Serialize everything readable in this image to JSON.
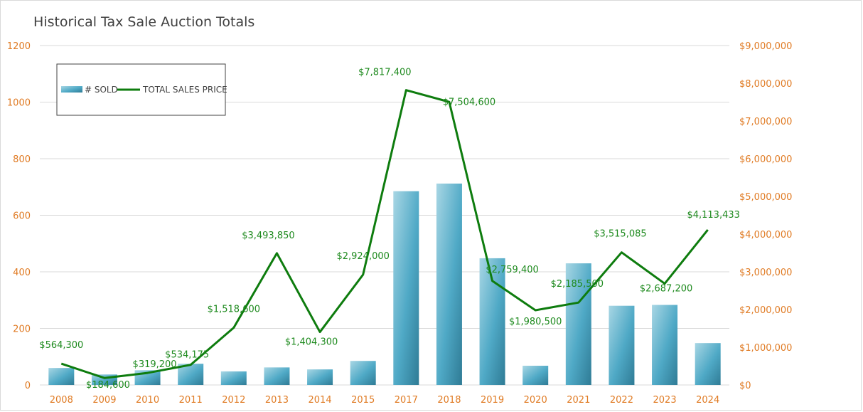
{
  "chart_data": {
    "type": "bar",
    "title": "Historical Tax Sale Auction Totals",
    "categories": [
      "2008",
      "2009",
      "2010",
      "2011",
      "2012",
      "2013",
      "2014",
      "2015",
      "2017",
      "2018",
      "2019",
      "2020",
      "2021",
      "2022",
      "2023",
      "2024"
    ],
    "series": [
      {
        "name": "# SOLD",
        "type": "bar",
        "axis": "left",
        "color": "#4aa6c4",
        "values": [
          60,
          37,
          52,
          75,
          48,
          62,
          55,
          85,
          685,
          712,
          448,
          68,
          430,
          280,
          283,
          148
        ]
      },
      {
        "name": "TOTAL SALES PRICE",
        "type": "line",
        "axis": "right",
        "color": "#0e7c0e",
        "values": [
          564300,
          184600,
          319200,
          534175,
          1518600,
          3493850,
          1404300,
          2924000,
          7817400,
          7504600,
          2759400,
          1980500,
          2185500,
          3515085,
          2687200,
          4113433
        ],
        "labels": [
          "$564,300",
          "$184,600",
          "$319,200",
          "$534,175",
          "$1,518,600",
          "$3,493,850",
          "$1,404,300",
          "$2,924,000",
          "$7,817,400",
          "$7,504,600",
          "$2,759,400",
          "$1,980,500",
          "$2,185,500",
          "$3,515,085",
          "$2,687,200",
          "$4,113,433"
        ]
      }
    ],
    "y_left": {
      "min": 0,
      "max": 1200,
      "ticks": [
        "0",
        "200",
        "400",
        "600",
        "800",
        "1000",
        "1200"
      ]
    },
    "y_right": {
      "min": 0,
      "max": 9000000,
      "ticks": [
        "$0",
        "$1,000,000",
        "$2,000,000",
        "$3,000,000",
        "$4,000,000",
        "$5,000,000",
        "$6,000,000",
        "$7,000,000",
        "$8,000,000",
        "$9,000,000"
      ]
    },
    "grid": true,
    "legend_position": "top-left",
    "tick_color": "#e07b24",
    "label_color": "#1e8a1e"
  }
}
